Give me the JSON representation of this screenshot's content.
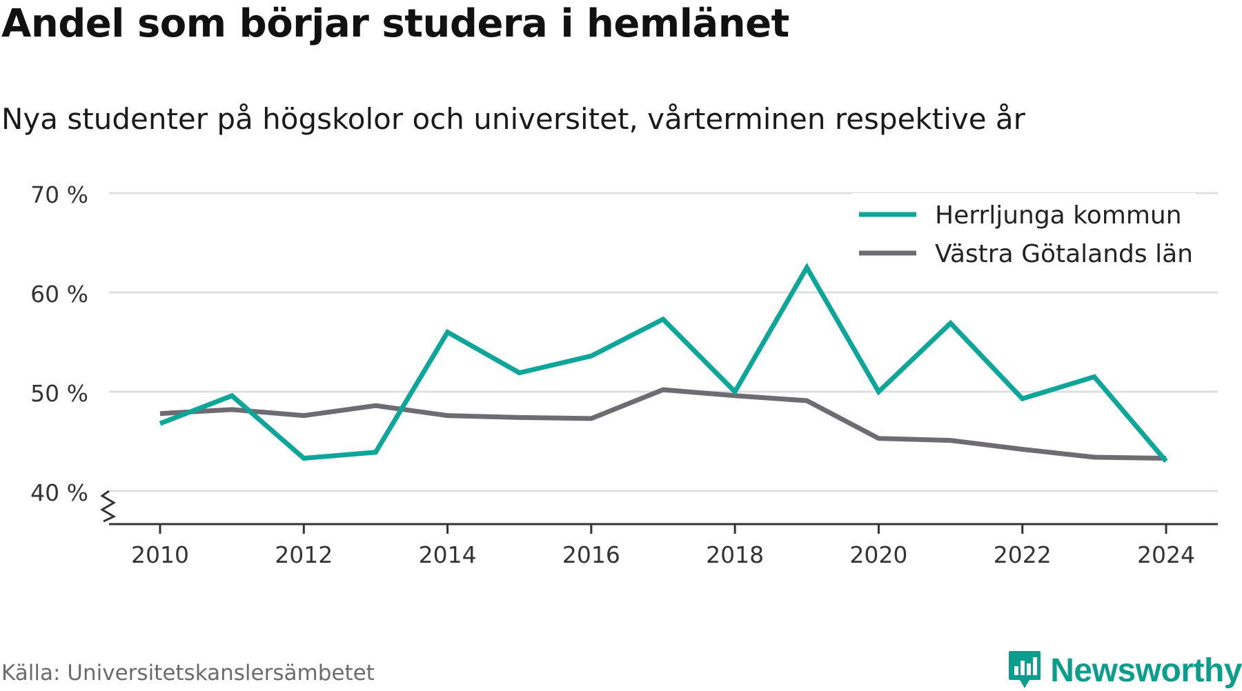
{
  "title": "Andel som börjar studera i hemlänet",
  "subtitle": "Nya studenter på högskolor och universitet, vårterminen respektive år",
  "source": "Källa: Universitetskanslersämbetet",
  "brand": "Newsworthy",
  "colors": {
    "herrljunga": "#0ea69a",
    "vastra_gotaland": "#6e6c72",
    "grid": "#dddddd",
    "axis": "#333333",
    "brand": "#0b9e8e"
  },
  "chart_data": {
    "type": "line",
    "x": [
      2010,
      2011,
      2012,
      2013,
      2014,
      2015,
      2016,
      2017,
      2018,
      2019,
      2020,
      2021,
      2022,
      2023,
      2024
    ],
    "series": [
      {
        "name": "Herrljunga kommun",
        "values": [
          46.8,
          49.6,
          43.3,
          43.9,
          56.0,
          51.9,
          53.6,
          57.3,
          50.0,
          62.5,
          50.0,
          56.9,
          49.3,
          51.5,
          43.0
        ]
      },
      {
        "name": "Västra Götalands län",
        "values": [
          47.8,
          48.2,
          47.6,
          48.6,
          47.6,
          47.4,
          47.3,
          50.2,
          49.6,
          49.1,
          45.3,
          45.1,
          44.2,
          43.4,
          43.3
        ]
      }
    ],
    "ylim": [
      40,
      70
    ],
    "y_ticks": [
      40,
      50,
      60,
      70
    ],
    "y_tick_labels": [
      "40 %",
      "50 %",
      "60 %",
      "70 %"
    ],
    "x_ticks": [
      2010,
      2012,
      2014,
      2016,
      2018,
      2020,
      2022,
      2024
    ],
    "x_tick_labels": [
      "2010",
      "2012",
      "2014",
      "2016",
      "2018",
      "2020",
      "2022",
      "2024"
    ],
    "xlabel": "",
    "ylabel": "",
    "grid": true,
    "legend_position": "top-right",
    "y_axis_break": true
  }
}
